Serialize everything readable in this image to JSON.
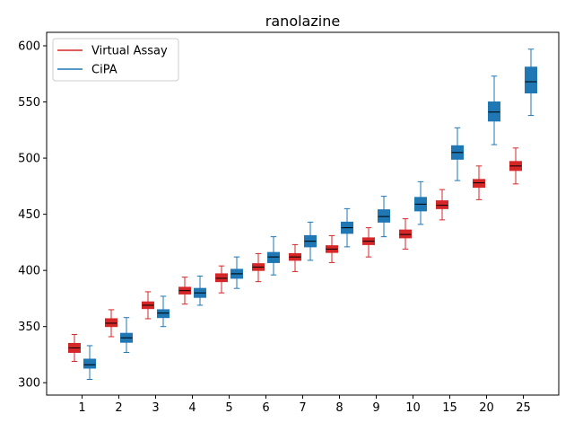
{
  "chart_data": {
    "type": "box",
    "title": "ranolazine",
    "xlabel": "",
    "ylabel": "",
    "categories": [
      "1",
      "2",
      "3",
      "4",
      "5",
      "6",
      "7",
      "8",
      "9",
      "10",
      "15",
      "20",
      "25"
    ],
    "ylim": [
      289,
      612
    ],
    "yticks": [
      300,
      350,
      400,
      450,
      500,
      550,
      600
    ],
    "legend": {
      "position": "top-left",
      "show": true
    },
    "grid": false,
    "series": [
      {
        "name": "Virtual Assay",
        "color": "#d62728",
        "boxes": [
          {
            "whislo": 319,
            "q1": 327,
            "med": 331,
            "q3": 335,
            "whishi": 343
          },
          {
            "whislo": 341,
            "q1": 350,
            "med": 353,
            "q3": 357,
            "whishi": 365
          },
          {
            "whislo": 357,
            "q1": 366,
            "med": 369,
            "q3": 372,
            "whishi": 381
          },
          {
            "whislo": 370,
            "q1": 379,
            "med": 382,
            "q3": 385,
            "whishi": 394
          },
          {
            "whislo": 380,
            "q1": 390,
            "med": 393,
            "q3": 397,
            "whishi": 404
          },
          {
            "whislo": 390,
            "q1": 400,
            "med": 403,
            "q3": 406,
            "whishi": 415
          },
          {
            "whislo": 399,
            "q1": 409,
            "med": 412,
            "q3": 415,
            "whishi": 423
          },
          {
            "whislo": 407,
            "q1": 416,
            "med": 419,
            "q3": 422,
            "whishi": 431
          },
          {
            "whislo": 412,
            "q1": 423,
            "med": 426,
            "q3": 429,
            "whishi": 438
          },
          {
            "whislo": 419,
            "q1": 429,
            "med": 432,
            "q3": 436,
            "whishi": 446
          },
          {
            "whislo": 445,
            "q1": 455,
            "med": 458,
            "q3": 462,
            "whishi": 472
          },
          {
            "whislo": 463,
            "q1": 474,
            "med": 478,
            "q3": 481,
            "whishi": 493
          },
          {
            "whislo": 477,
            "q1": 489,
            "med": 493,
            "q3": 497,
            "whishi": 509
          }
        ]
      },
      {
        "name": "CiPA",
        "color": "#1f77b4",
        "boxes": [
          {
            "whislo": 303,
            "q1": 313,
            "med": 316,
            "q3": 321,
            "whishi": 333
          },
          {
            "whislo": 327,
            "q1": 336,
            "med": 340,
            "q3": 344,
            "whishi": 358
          },
          {
            "whislo": 350,
            "q1": 358,
            "med": 362,
            "q3": 365,
            "whishi": 377
          },
          {
            "whislo": 369,
            "q1": 376,
            "med": 380,
            "q3": 384,
            "whishi": 395
          },
          {
            "whislo": 384,
            "q1": 393,
            "med": 397,
            "q3": 401,
            "whishi": 412
          },
          {
            "whislo": 396,
            "q1": 407,
            "med": 412,
            "q3": 416,
            "whishi": 430
          },
          {
            "whislo": 409,
            "q1": 421,
            "med": 426,
            "q3": 431,
            "whishi": 443
          },
          {
            "whislo": 421,
            "q1": 433,
            "med": 438,
            "q3": 443,
            "whishi": 455
          },
          {
            "whislo": 430,
            "q1": 443,
            "med": 448,
            "q3": 454,
            "whishi": 466
          },
          {
            "whislo": 441,
            "q1": 453,
            "med": 459,
            "q3": 465,
            "whishi": 479
          },
          {
            "whislo": 480,
            "q1": 499,
            "med": 505,
            "q3": 511,
            "whishi": 527
          },
          {
            "whislo": 512,
            "q1": 533,
            "med": 541,
            "q3": 550,
            "whishi": 573
          },
          {
            "whislo": 538,
            "q1": 558,
            "med": 568,
            "q3": 581,
            "whishi": 597
          }
        ]
      }
    ]
  }
}
